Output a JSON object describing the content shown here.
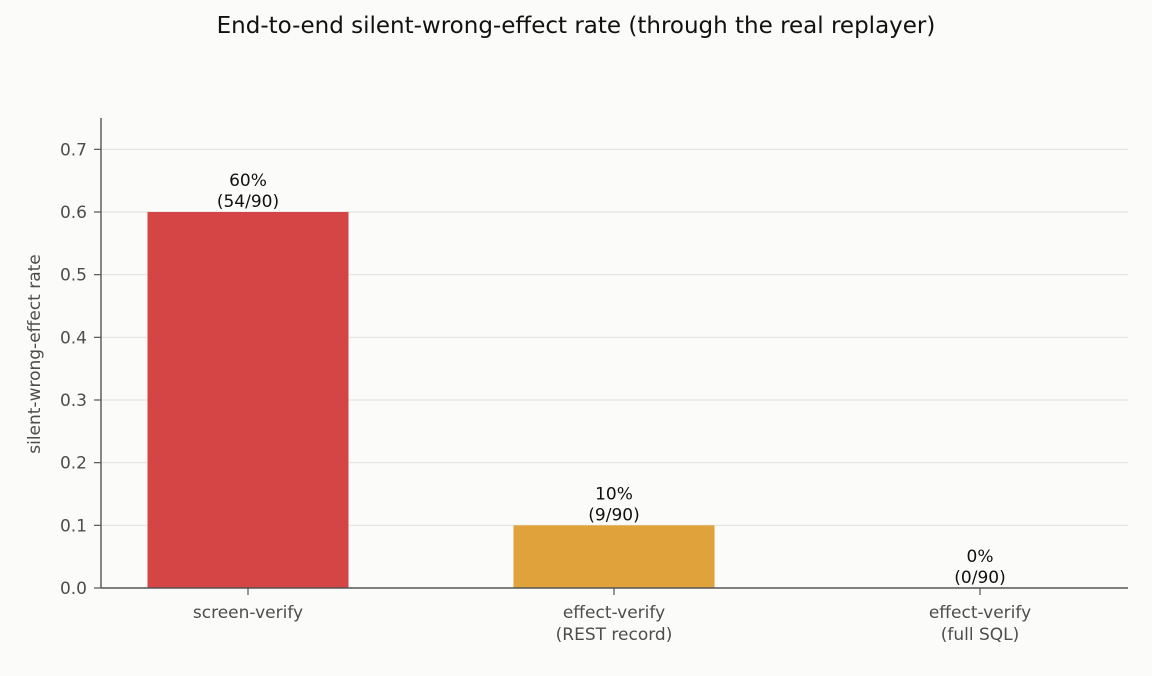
{
  "chart_data": {
    "type": "bar",
    "title": "End-to-end silent-wrong-effect rate (through the real replayer)",
    "xlabel": "",
    "ylabel": "silent-wrong-effect rate",
    "ylim": [
      0,
      0.75
    ],
    "yticks": [
      0.0,
      0.1,
      0.2,
      0.3,
      0.4,
      0.5,
      0.6,
      0.7
    ],
    "ytick_labels": [
      "0.0",
      "0.1",
      "0.2",
      "0.3",
      "0.4",
      "0.5",
      "0.6",
      "0.7"
    ],
    "grid": true,
    "categories": [
      [
        "screen-verify"
      ],
      [
        "effect-verify",
        "(REST record)"
      ],
      [
        "effect-verify",
        "(full SQL)"
      ]
    ],
    "values": [
      0.6,
      0.1,
      0.0
    ],
    "data_labels": [
      [
        "60%",
        "(54/90)"
      ],
      [
        "10%",
        "(9/90)"
      ],
      [
        "0%",
        "(0/90)"
      ]
    ],
    "colors": [
      "#d64545",
      "#e0a33c",
      "#3a9e5f"
    ]
  }
}
